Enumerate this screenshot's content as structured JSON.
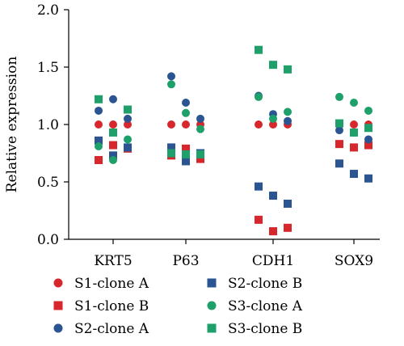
{
  "chart_data": {
    "type": "scatter",
    "ylabel": "Relative expression",
    "ylim": [
      0.0,
      2.0
    ],
    "yticks": [
      "0.0",
      "0.5",
      "1.0",
      "1.5",
      "2.0"
    ],
    "categories": [
      "KRT5",
      "P63",
      "CDH1",
      "SOX9"
    ],
    "series": [
      {
        "name": "S1-clone A",
        "marker": "circle",
        "color": "#d7272d",
        "values": [
          [
            1.0,
            1.0,
            1.0
          ],
          [
            1.0,
            1.0,
            1.0
          ],
          [
            1.0,
            1.0,
            1.0
          ],
          [
            1.0,
            1.0,
            1.0
          ]
        ]
      },
      {
        "name": "S1-clone B",
        "marker": "square",
        "color": "#d7272d",
        "values": [
          [
            0.69,
            0.82,
            0.79
          ],
          [
            0.73,
            0.79,
            0.7
          ],
          [
            0.17,
            0.07,
            0.1
          ],
          [
            0.83,
            0.8,
            0.82
          ]
        ]
      },
      {
        "name": "S2-clone A",
        "marker": "circle",
        "color": "#2a5592",
        "values": [
          [
            1.12,
            1.22,
            1.05
          ],
          [
            1.42,
            1.19,
            1.05
          ],
          [
            1.25,
            1.09,
            1.03
          ],
          [
            0.95,
            0.93,
            0.87
          ]
        ]
      },
      {
        "name": "S2-clone B",
        "marker": "square",
        "color": "#2a5592",
        "values": [
          [
            0.86,
            0.73,
            0.8
          ],
          [
            0.8,
            0.68,
            0.75
          ],
          [
            0.46,
            0.38,
            0.31
          ],
          [
            0.66,
            0.57,
            0.53
          ]
        ]
      },
      {
        "name": "S3-clone A",
        "marker": "circle",
        "color": "#1ea06b",
        "values": [
          [
            0.81,
            0.69,
            0.87
          ],
          [
            1.35,
            1.1,
            0.96
          ],
          [
            1.24,
            1.05,
            1.11
          ],
          [
            1.24,
            1.19,
            1.12
          ]
        ]
      },
      {
        "name": "S3-clone B",
        "marker": "square",
        "color": "#1ea06b",
        "values": [
          [
            1.22,
            0.93,
            1.13
          ],
          [
            0.75,
            0.74,
            0.74
          ],
          [
            1.65,
            1.52,
            1.48
          ],
          [
            1.01,
            0.93,
            0.97
          ]
        ]
      }
    ],
    "legend": [
      "S1-clone A",
      "S2-clone B",
      "S1-clone B",
      "S3-clone A",
      "S2-clone A",
      "S3-clone B"
    ],
    "grid": false
  }
}
